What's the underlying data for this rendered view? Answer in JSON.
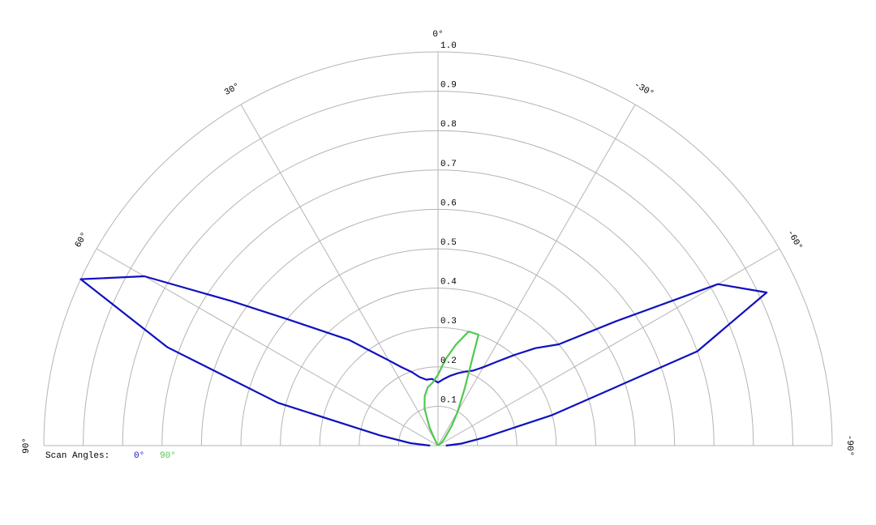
{
  "chart_data": {
    "type": "polar",
    "theta": [
      90,
      85,
      80,
      75,
      70,
      65,
      60,
      55,
      50,
      45,
      40,
      35,
      30,
      25,
      20,
      15,
      10,
      5,
      0,
      -5,
      -10,
      -15,
      -20,
      -25,
      -30,
      -35,
      -40,
      -45,
      -50,
      -55,
      -60,
      -65,
      -70,
      -75,
      -80,
      -85,
      -90
    ],
    "series": [
      {
        "name": "0°",
        "color": "#1010c0",
        "values": [
          0.02,
          0.07,
          0.15,
          0.42,
          0.73,
          1.0,
          0.86,
          0.64,
          0.5,
          0.41,
          0.35,
          0.29,
          0.25,
          0.22,
          0.2,
          0.18,
          0.17,
          0.17,
          0.16,
          0.17,
          0.18,
          0.19,
          0.2,
          0.21,
          0.23,
          0.26,
          0.3,
          0.35,
          0.4,
          0.55,
          0.82,
          0.92,
          0.7,
          0.3,
          0.12,
          0.06,
          0.02
        ]
      },
      {
        "name": "90°",
        "color": "#50c850",
        "values": [
          0,
          0,
          0,
          0,
          0,
          0,
          0,
          0,
          0,
          0,
          0,
          0,
          0.01,
          0.05,
          0.1,
          0.13,
          0.15,
          0.16,
          0.18,
          0.22,
          0.26,
          0.3,
          0.3,
          0.16,
          0.1,
          0.06,
          0.03,
          0.02,
          0.01,
          0,
          0,
          0,
          0,
          0,
          0,
          0,
          0
        ]
      }
    ],
    "rlim": [
      0,
      1
    ],
    "rticks": [
      0.1,
      0.2,
      0.3,
      0.4,
      0.5,
      0.6,
      0.7,
      0.8,
      0.9,
      {
        "value": 1,
        "label": "1.0"
      }
    ],
    "thetaticks": [
      {
        "value": 90,
        "label": "90°"
      },
      {
        "value": 60,
        "label": "60°"
      },
      {
        "value": 30,
        "label": "30°"
      },
      {
        "value": 0,
        "label": "0°"
      },
      {
        "value": -30,
        "label": "-30°"
      },
      {
        "value": -60,
        "label": "-60°"
      },
      {
        "value": -90,
        "label": "-90°"
      }
    ],
    "legend_title": "Scan Angles:"
  }
}
